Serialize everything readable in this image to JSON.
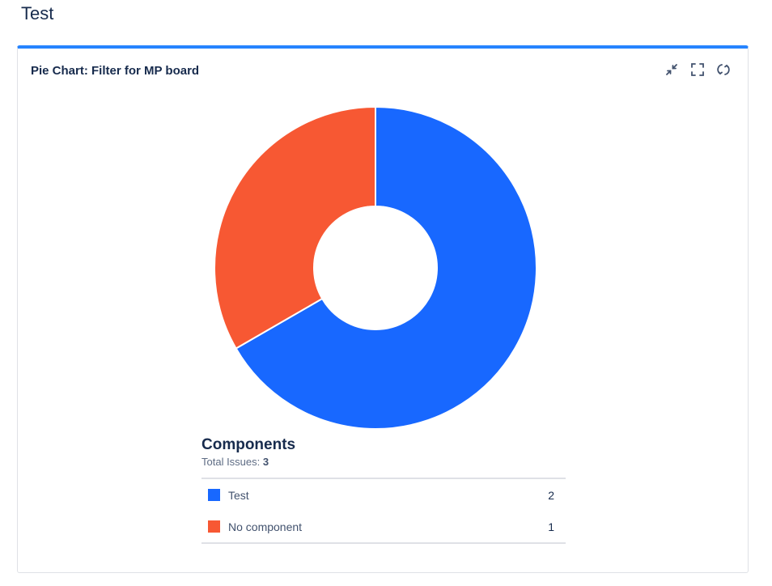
{
  "page": {
    "title": "Test"
  },
  "gadget": {
    "title": "Pie Chart: Filter for MP board",
    "actions": [
      {
        "name": "minimize-icon"
      },
      {
        "name": "fullscreen-icon"
      },
      {
        "name": "refresh-icon"
      }
    ]
  },
  "colors": {
    "accent": "#2684ff",
    "test": "#1868ff",
    "no_component": "#f75833"
  },
  "chart_data": {
    "type": "pie",
    "donut": true,
    "title": "Components",
    "total_label": "Total Issues:",
    "total": "3",
    "categories": [
      "Test",
      "No component"
    ],
    "values": [
      2,
      1
    ],
    "colors": [
      "#1868ff",
      "#f75833"
    ],
    "legend": [
      {
        "label": "Test",
        "count": "2"
      },
      {
        "label": "No component",
        "count": "1"
      }
    ]
  }
}
